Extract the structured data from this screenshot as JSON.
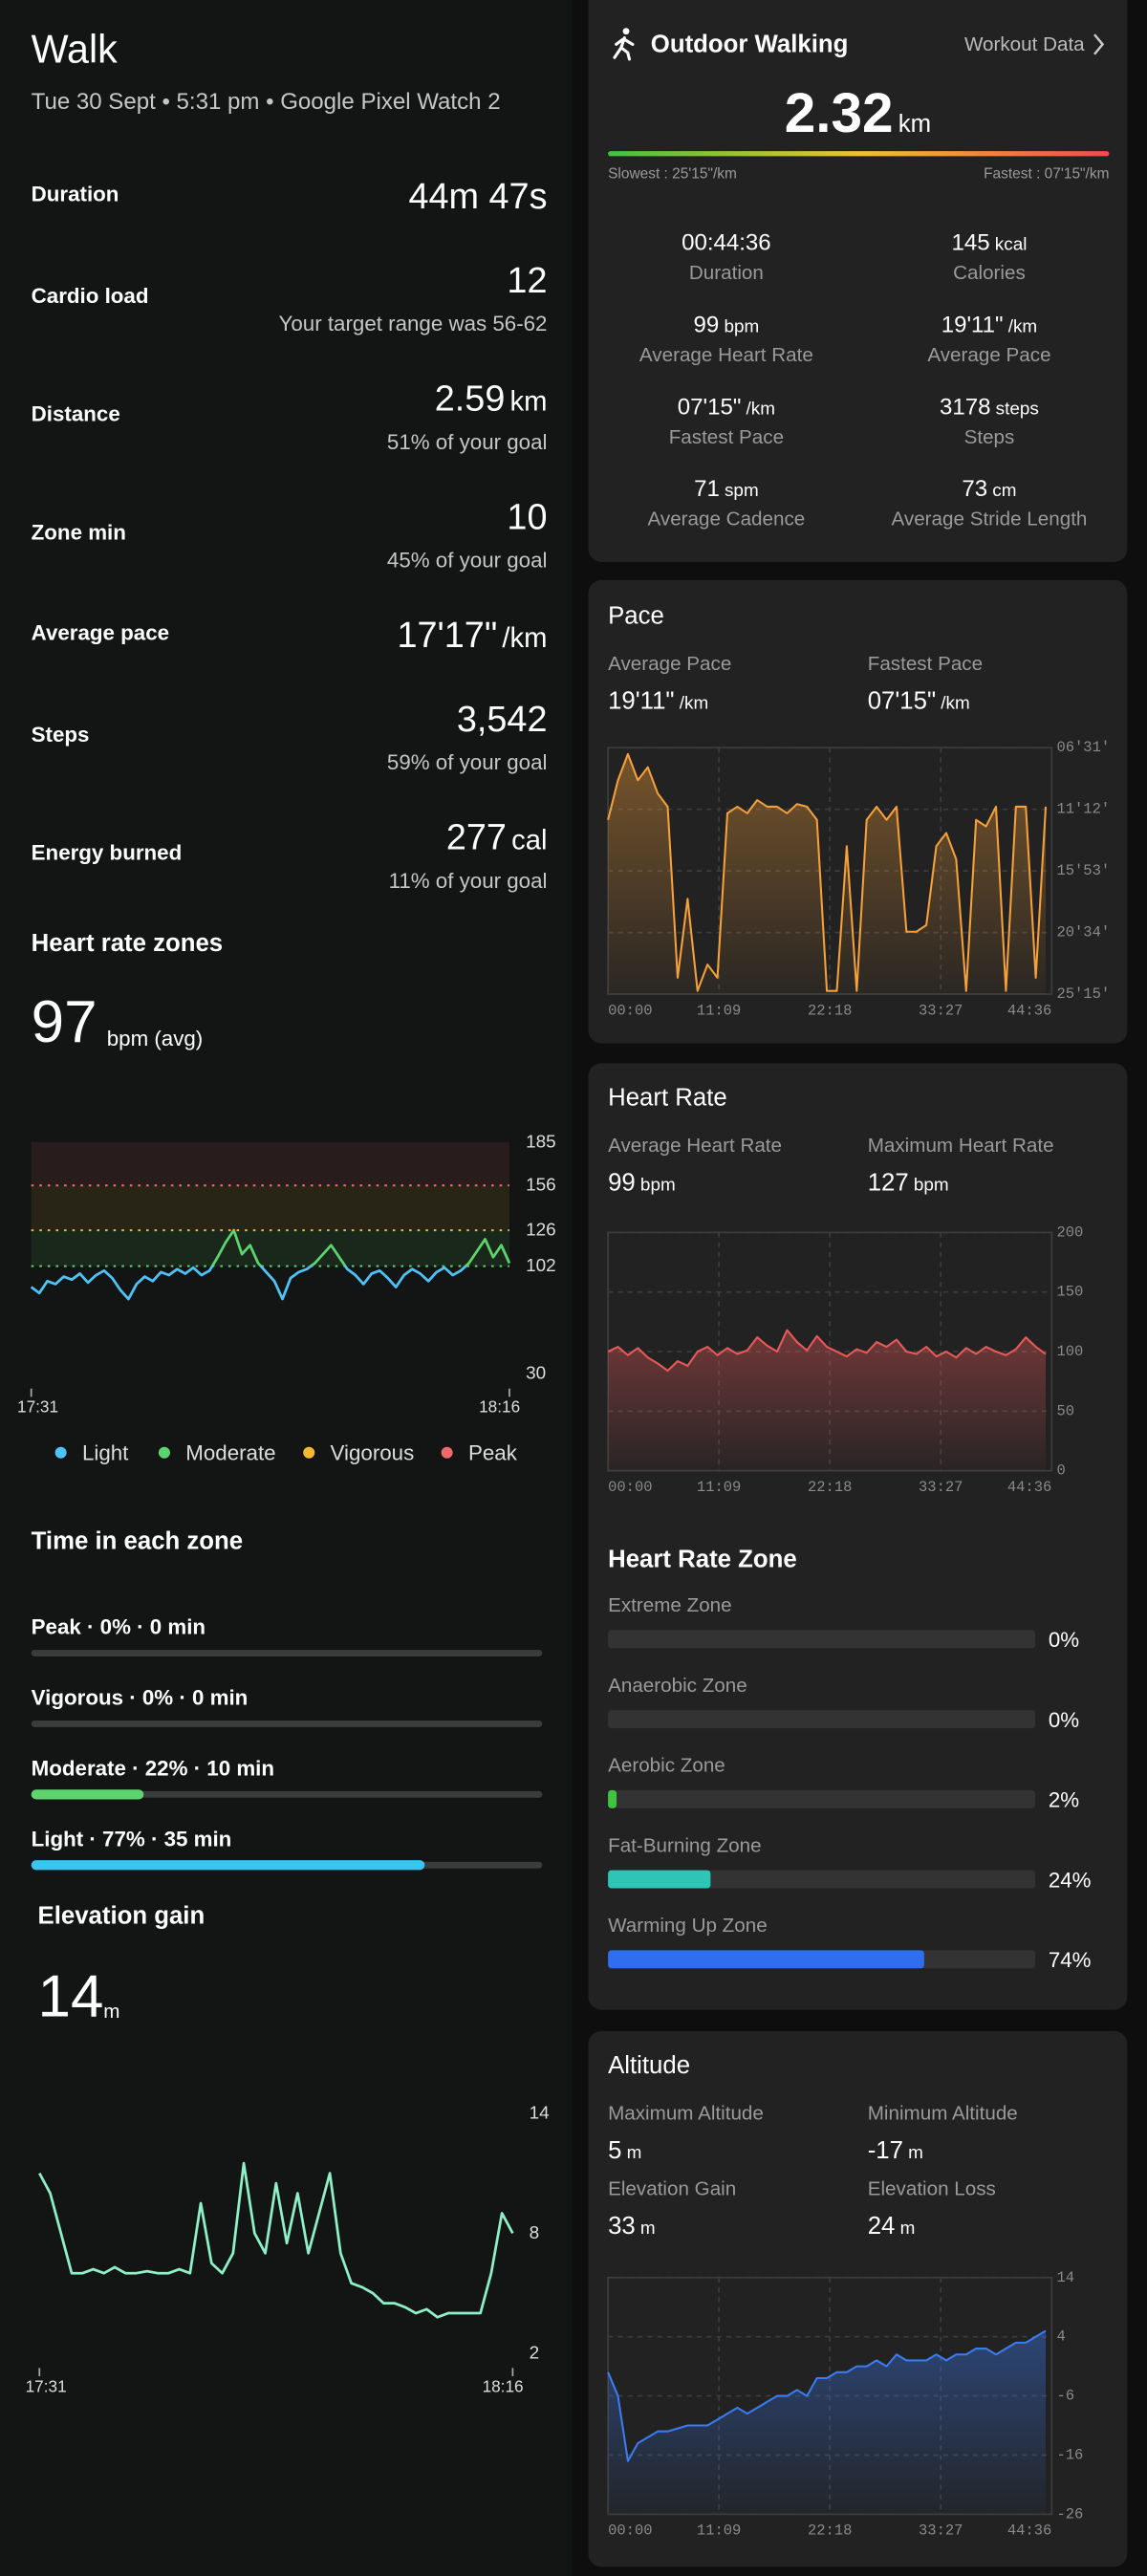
{
  "left": {
    "title": "Walk",
    "subtitle": "Tue 30 Sept • 5:31 pm • Google Pixel Watch 2",
    "stats": [
      {
        "label": "Duration",
        "value": "44m 47s"
      },
      {
        "label": "Cardio load",
        "value": "12",
        "note": "Your target range was 56-62"
      },
      {
        "label": "Distance",
        "value": "2.59",
        "unit": "km",
        "note": "51% of your goal"
      },
      {
        "label": "Zone min",
        "value": "10",
        "note": "45% of your goal"
      },
      {
        "label": "Average pace",
        "value": "17'17\"",
        "unit": "/km"
      },
      {
        "label": "Steps",
        "value": "3,542",
        "note": "59% of your goal"
      },
      {
        "label": "Energy burned",
        "value": "277",
        "unit": "cal",
        "note": "11% of your goal"
      }
    ],
    "hr_zones": {
      "title": "Heart rate zones",
      "value": "97",
      "unit": "bpm (avg)",
      "legend": [
        {
          "name": "Light",
          "color": "#4fc3f7"
        },
        {
          "name": "Moderate",
          "color": "#5ed46f"
        },
        {
          "name": "Vigorous",
          "color": "#f7b733"
        },
        {
          "name": "Peak",
          "color": "#ef6b6b"
        }
      ],
      "time_title": "Time in each zone",
      "time_rows": [
        {
          "label": "Peak · 0% · 0 min",
          "value": 0,
          "color": "#ef6b6b"
        },
        {
          "label": "Vigorous · 0% · 0 min",
          "value": 0,
          "color": "#f7b733"
        },
        {
          "label": "Moderate · 22% · 10 min",
          "value": 22,
          "color": "#5ed46f"
        },
        {
          "label": "Light · 77% · 35 min",
          "value": 77,
          "color": "#3cc3f2"
        }
      ]
    },
    "elevation": {
      "title": "Elevation gain",
      "value": "14",
      "unit": "m"
    }
  },
  "workout": {
    "title": "Outdoor Walking",
    "link": "Workout Data",
    "distance": "2.32",
    "distance_unit": "km",
    "slowest": "Slowest : 25'15\"/km",
    "fastest": "Fastest : 07'15\"/km",
    "stats": [
      {
        "value": "00:44:36",
        "label": "Duration"
      },
      {
        "value": "145",
        "unit": "kcal",
        "label": "Calories"
      },
      {
        "value": "99",
        "unit": "bpm",
        "label": "Average Heart Rate"
      },
      {
        "value": "19'11\"",
        "unit": "/km",
        "label": "Average Pace"
      },
      {
        "value": "07'15\"",
        "unit": "/km",
        "label": "Fastest Pace"
      },
      {
        "value": "3178",
        "unit": "steps",
        "label": "Steps"
      },
      {
        "value": "71",
        "unit": "spm",
        "label": "Average Cadence"
      },
      {
        "value": "73",
        "unit": "cm",
        "label": "Average Stride Length"
      }
    ]
  },
  "pace": {
    "title": "Pace",
    "stats": [
      {
        "label": "Average Pace",
        "value": "19'11\"",
        "unit": "/km"
      },
      {
        "label": "Fastest Pace",
        "value": "07'15\"",
        "unit": "/km"
      }
    ]
  },
  "heart_rate": {
    "title": "Heart Rate",
    "stats": [
      {
        "label": "Average Heart Rate",
        "value": "99",
        "unit": "bpm"
      },
      {
        "label": "Maximum Heart Rate",
        "value": "127",
        "unit": "bpm"
      }
    ],
    "zone_title": "Heart Rate Zone",
    "zones": [
      {
        "label": "Extreme Zone",
        "value": 0,
        "value_label": "0%",
        "color": "#e84c4c"
      },
      {
        "label": "Anaerobic Zone",
        "value": 0,
        "value_label": "0%",
        "color": "#f29a2e"
      },
      {
        "label": "Aerobic Zone",
        "value": 2,
        "value_label": "2%",
        "color": "#3ec43e"
      },
      {
        "label": "Fat-Burning Zone",
        "value": 24,
        "value_label": "24%",
        "color": "#2ec4b6"
      },
      {
        "label": "Warming Up Zone",
        "value": 74,
        "value_label": "74%",
        "color": "#2f6fef"
      }
    ]
  },
  "altitude": {
    "title": "Altitude",
    "stats": [
      {
        "label": "Maximum Altitude",
        "value": "5",
        "unit": "m"
      },
      {
        "label": "Minimum Altitude",
        "value": "-17",
        "unit": "m"
      },
      {
        "label": "Elevation Gain",
        "value": "33",
        "unit": "m"
      },
      {
        "label": "Elevation Loss",
        "value": "24",
        "unit": "m"
      }
    ]
  },
  "chart_data": [
    {
      "type": "line",
      "values": [
        88,
        84,
        92,
        90,
        95,
        93,
        97,
        91,
        96,
        99,
        94,
        86,
        80,
        90,
        95,
        92,
        98,
        96,
        100,
        97,
        101,
        96,
        99,
        108,
        118,
        126,
        110,
        116,
        104,
        98,
        92,
        80,
        94,
        98,
        100,
        104,
        110,
        116,
        108,
        100,
        96,
        90,
        97,
        99,
        94,
        88,
        96,
        100,
        97,
        92,
        98,
        101,
        96,
        99,
        104,
        112,
        120,
        108,
        116,
        104
      ],
      "ylim": [
        30,
        185
      ],
      "yticks": [
        30,
        102,
        126,
        156,
        185
      ],
      "xticks": [
        "17:31",
        "18:16"
      ]
    },
    {
      "type": "line",
      "color": "#8ff0c8",
      "values": [
        11,
        10,
        8,
        6,
        6,
        6.2,
        6,
        6.3,
        6,
        6,
        6.1,
        6,
        6,
        6.2,
        6,
        9.5,
        6.5,
        6,
        7,
        11.5,
        8,
        7,
        10.5,
        7.5,
        10,
        7,
        9,
        11,
        7,
        5.5,
        5.3,
        5,
        4.5,
        4.5,
        4.3,
        4,
        4.2,
        3.8,
        4,
        4,
        4,
        4,
        6,
        9,
        8
      ],
      "ylim": [
        2,
        14
      ],
      "yticks": [
        2,
        8,
        14
      ],
      "xticks": [
        "17:31",
        "18:16"
      ]
    },
    {
      "type": "line",
      "color": "#f5a03a",
      "x": [
        0,
        1,
        2,
        3,
        4,
        5,
        6,
        7,
        8,
        9,
        10,
        11,
        12,
        13,
        14,
        15,
        16,
        17,
        18,
        19,
        20,
        21,
        22,
        23,
        24,
        25,
        26,
        27,
        28,
        29,
        30,
        31,
        32,
        33,
        34,
        35,
        36,
        37,
        38,
        39,
        40,
        41,
        42,
        43,
        44
      ],
      "values": [
        12,
        9,
        7,
        9,
        8,
        10,
        11,
        24,
        18,
        25,
        23,
        24,
        11.5,
        11,
        11.5,
        10.5,
        11,
        11,
        11.5,
        10.8,
        11,
        12,
        25,
        25,
        14,
        25,
        12,
        11,
        12,
        11,
        20.5,
        20.5,
        20,
        14,
        13,
        15,
        25,
        12,
        12.5,
        11,
        25,
        11,
        11,
        24,
        11
      ],
      "xlim": [
        0,
        44.6
      ],
      "xticks": [
        {
          "value": 0,
          "label": "00:00"
        },
        {
          "value": 11.15,
          "label": "11:09"
        },
        {
          "value": 22.3,
          "label": "22:18"
        },
        {
          "value": 33.45,
          "label": "33:27"
        },
        {
          "value": 44.6,
          "label": "44:36"
        }
      ],
      "ylim": [
        25.25,
        6.517
      ],
      "yticks": [
        {
          "value": 6.517,
          "label": "06'31'"
        },
        {
          "value": 11.2,
          "label": "11'12'"
        },
        {
          "value": 15.883,
          "label": "15'53'"
        },
        {
          "value": 20.567,
          "label": "20'34'"
        },
        {
          "value": 25.25,
          "label": "25'15'"
        }
      ]
    },
    {
      "type": "line",
      "color": "#e85a5a",
      "x": [
        0,
        1,
        2,
        3,
        4,
        5,
        6,
        7,
        8,
        9,
        10,
        11,
        12,
        13,
        14,
        15,
        16,
        17,
        18,
        19,
        20,
        21,
        22,
        23,
        24,
        25,
        26,
        27,
        28,
        29,
        30,
        31,
        32,
        33,
        34,
        35,
        36,
        37,
        38,
        39,
        40,
        41,
        42,
        43,
        44
      ],
      "values": [
        100,
        104,
        97,
        103,
        95,
        90,
        84,
        92,
        88,
        100,
        104,
        97,
        103,
        98,
        101,
        112,
        105,
        100,
        118,
        108,
        101,
        113,
        104,
        100,
        96,
        102,
        99,
        108,
        104,
        110,
        100,
        98,
        104,
        96,
        100,
        95,
        103,
        98,
        104,
        100,
        97,
        102,
        112,
        104,
        98
      ],
      "xlim": [
        0,
        44.6
      ],
      "xticks": [
        {
          "value": 0,
          "label": "00:00"
        },
        {
          "value": 11.15,
          "label": "11:09"
        },
        {
          "value": 22.3,
          "label": "22:18"
        },
        {
          "value": 33.45,
          "label": "33:27"
        },
        {
          "value": 44.6,
          "label": "44:36"
        }
      ],
      "ylim": [
        0,
        200
      ],
      "yticks": [
        0,
        50,
        100,
        150,
        200
      ]
    },
    {
      "type": "line",
      "color": "#3b7cf2",
      "x": [
        0,
        1,
        2,
        3,
        4,
        5,
        6,
        7,
        8,
        9,
        10,
        11,
        12,
        13,
        14,
        15,
        16,
        17,
        18,
        19,
        20,
        21,
        22,
        23,
        24,
        25,
        26,
        27,
        28,
        29,
        30,
        31,
        32,
        33,
        34,
        35,
        36,
        37,
        38,
        39,
        40,
        41,
        42,
        43,
        44
      ],
      "values": [
        -2,
        -6,
        -17,
        -14,
        -13,
        -12,
        -12,
        -11.5,
        -11,
        -11,
        -11,
        -10,
        -9,
        -8,
        -9,
        -8,
        -7,
        -6,
        -6,
        -5,
        -6,
        -3,
        -3,
        -2,
        -2,
        -1,
        -1,
        0,
        -1,
        1,
        0,
        0,
        0,
        1,
        0,
        1,
        1,
        2,
        2,
        1,
        2,
        3,
        3,
        4,
        5
      ],
      "xlim": [
        0,
        44.6
      ],
      "xticks": [
        {
          "value": 0,
          "label": "00:00"
        },
        {
          "value": 11.15,
          "label": "11:09"
        },
        {
          "value": 22.3,
          "label": "22:18"
        },
        {
          "value": 33.45,
          "label": "33:27"
        },
        {
          "value": 44.6,
          "label": "44:36"
        }
      ],
      "ylim": [
        -26,
        14
      ],
      "yticks": [
        -26,
        -16,
        -6,
        4,
        14
      ]
    }
  ]
}
